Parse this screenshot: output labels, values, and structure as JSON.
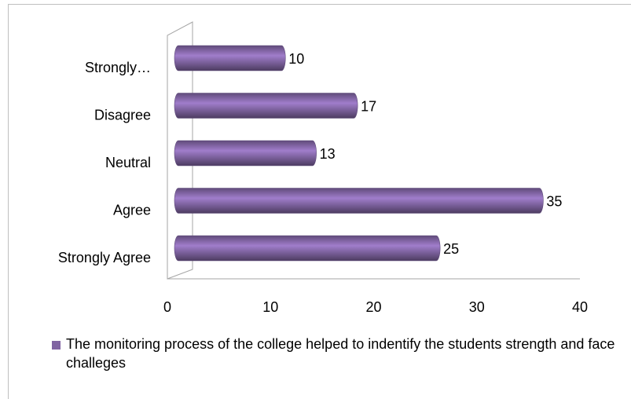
{
  "chart_data": {
    "type": "bar",
    "orientation": "horizontal",
    "categories": [
      "Strongly…",
      "Disagree",
      "Neutral",
      "Agree",
      "Strongly Agree"
    ],
    "series": [
      {
        "name": "The  monitoring process of  the  college helped to  indentify the students strength and  face challeges",
        "color": "#8064a2",
        "values": [
          10,
          17,
          13,
          35,
          25
        ]
      }
    ],
    "xlim": [
      0,
      40
    ],
    "xticks": [
      0,
      10,
      20,
      30,
      40
    ],
    "legend": "bottom"
  }
}
